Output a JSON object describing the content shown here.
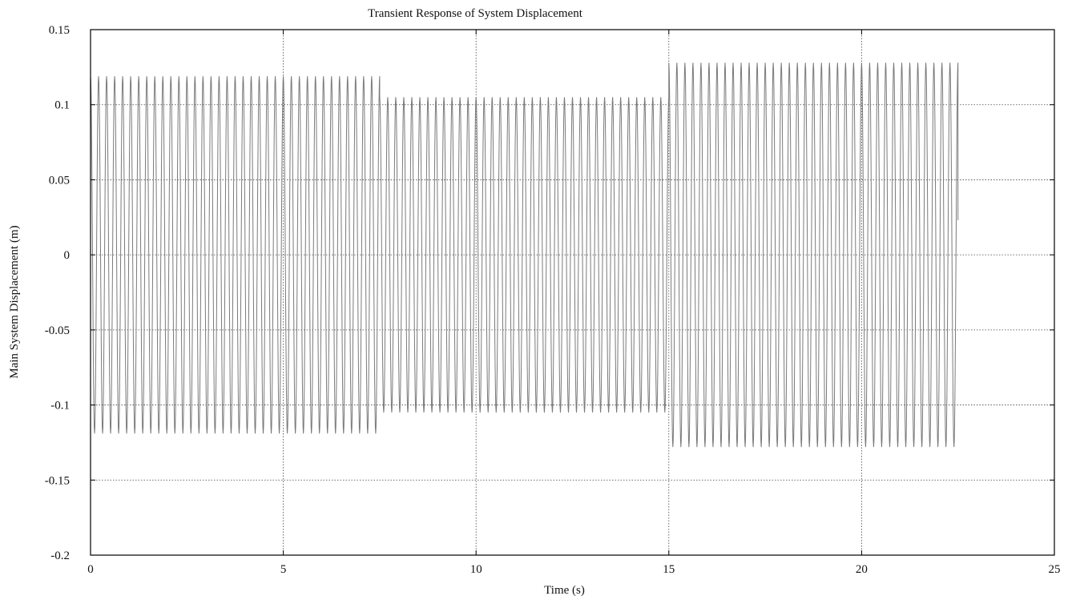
{
  "chart_data": {
    "type": "line",
    "title": "Transient Response of System Displacement",
    "xlabel": "Time (s)",
    "ylabel": "Main System Displacement (m)",
    "xlim": [
      0,
      25
    ],
    "ylim": [
      -0.2,
      0.15
    ],
    "x_ticks": [
      0,
      5,
      10,
      15,
      20,
      25
    ],
    "x_tick_labels": [
      "0",
      "5",
      "10",
      "15",
      "20",
      "25"
    ],
    "y_ticks": [
      -0.2,
      -0.15,
      -0.1,
      -0.05,
      0,
      0.05,
      0.1,
      0.15
    ],
    "y_tick_labels": [
      "-0.2",
      "-0.15",
      "-0.1",
      "-0.05",
      "0",
      "0.05",
      "0.1",
      "0.15"
    ],
    "grid": true,
    "colors": {
      "line": "#7a7a7a",
      "grid": "#444444",
      "axes": "#000000"
    },
    "series": [
      {
        "segments": [
          {
            "t_start": 0.0,
            "t_end": 7.5,
            "amplitude": 0.119,
            "cycles": 36
          },
          {
            "t_start": 7.5,
            "t_end": 15.0,
            "amplitude": 0.105,
            "cycles": 36
          },
          {
            "t_start": 15.0,
            "t_end": 22.5,
            "amplitude": 0.128,
            "cycles": 36
          }
        ],
        "final_value": 0.023
      }
    ]
  }
}
